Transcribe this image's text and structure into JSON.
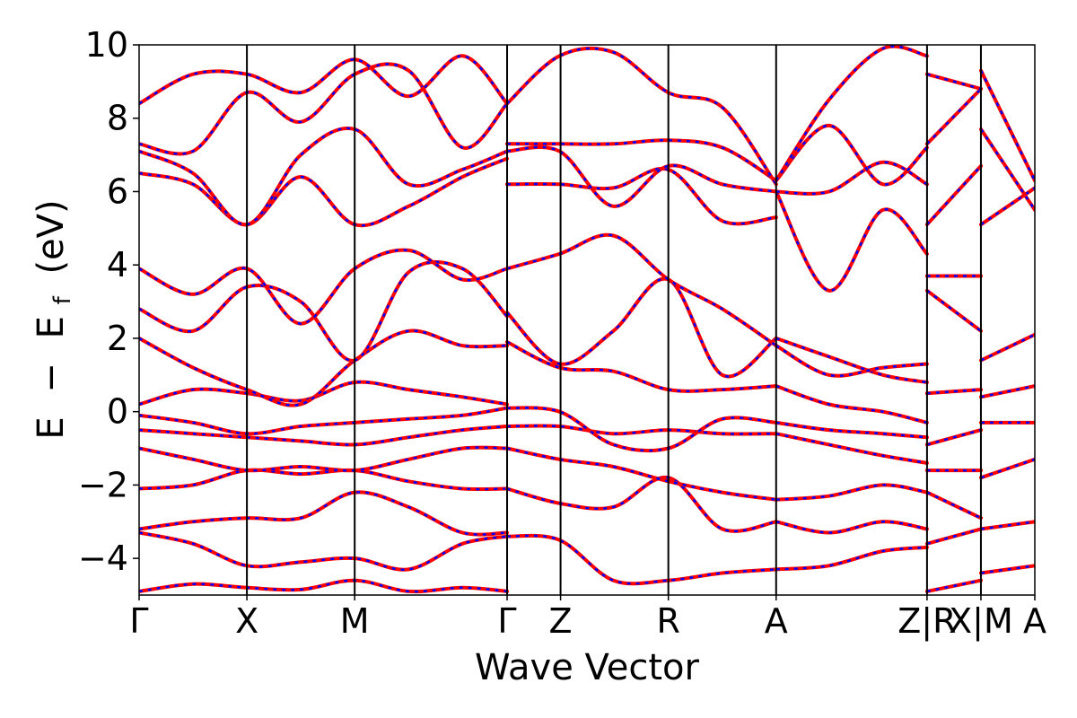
{
  "chart_data": {
    "type": "line",
    "xlabel": "Wave Vector",
    "ylabel": "E − E_f (eV)",
    "ylabel_parts": {
      "e": "E",
      "minus": "−",
      "ef_base": "E",
      "ef_sub": "f",
      "unit": "(eV)"
    },
    "ylim": [
      -5,
      10
    ],
    "yticks": [
      -4,
      -2,
      0,
      2,
      4,
      6,
      8,
      10
    ],
    "ytick_labels": [
      "−4",
      "−2",
      "0",
      "2",
      "4",
      "6",
      "8",
      "10"
    ],
    "grid": false,
    "kpoints": [
      {
        "label": "Γ",
        "x": 0.0
      },
      {
        "label": "X",
        "x": 1.0
      },
      {
        "label": "M",
        "x": 2.0
      },
      {
        "label": "Γ",
        "x": 3.414
      },
      {
        "label": "Z",
        "x": 3.91
      },
      {
        "label": "R",
        "x": 4.91
      },
      {
        "label": "A",
        "x": 5.91
      },
      {
        "label": "Z|R",
        "x": 7.31
      },
      {
        "label": "X|M",
        "x": 7.81
      },
      {
        "label": "A",
        "x": 8.31
      }
    ],
    "xlim": [
      0,
      8.31
    ],
    "series_colors": {
      "a": "#ff0000",
      "b": "#0000ff"
    },
    "series": [
      {
        "name": "",
        "style": "solid",
        "bands": [
          {
            "x": [
              0,
              0.5,
              1,
              1.5,
              2,
              2.5,
              3,
              3.414
            ],
            "y": [
              -4.9,
              -4.7,
              -4.8,
              -4.85,
              -4.6,
              -4.9,
              -4.8,
              -4.9
            ]
          },
          {
            "x": [
              0,
              0.5,
              1,
              1.5,
              2,
              2.5,
              3,
              3.414
            ],
            "y": [
              -3.3,
              -3.6,
              -4.2,
              -4.1,
              -4.0,
              -4.3,
              -3.6,
              -3.4
            ]
          },
          {
            "x": [
              0,
              0.5,
              1,
              1.5,
              2,
              2.5,
              3,
              3.414
            ],
            "y": [
              -3.2,
              -3.0,
              -2.9,
              -2.9,
              -2.2,
              -2.6,
              -3.3,
              -3.3
            ]
          },
          {
            "x": [
              0,
              0.5,
              1,
              1.5,
              2,
              2.5,
              3,
              3.414
            ],
            "y": [
              -2.1,
              -2.0,
              -1.6,
              -1.7,
              -1.6,
              -1.9,
              -2.1,
              -2.1
            ]
          },
          {
            "x": [
              0,
              0.5,
              1,
              1.5,
              2,
              2.5,
              3,
              3.414
            ],
            "y": [
              -1.0,
              -1.3,
              -1.6,
              -1.5,
              -1.6,
              -1.3,
              -1.0,
              -1.0
            ]
          },
          {
            "x": [
              0,
              0.5,
              1,
              1.5,
              2,
              2.5,
              3,
              3.414
            ],
            "y": [
              -0.5,
              -0.6,
              -0.7,
              -0.8,
              -0.9,
              -0.7,
              -0.5,
              -0.4
            ]
          },
          {
            "x": [
              0,
              0.5,
              1,
              1.5,
              2,
              2.5,
              3,
              3.414
            ],
            "y": [
              -0.1,
              -0.3,
              -0.6,
              -0.4,
              -0.3,
              -0.2,
              -0.1,
              0.1
            ]
          },
          {
            "x": [
              0,
              0.5,
              1,
              1.5,
              2,
              2.5,
              3,
              3.414
            ],
            "y": [
              0.2,
              0.6,
              0.5,
              0.3,
              0.8,
              0.6,
              0.4,
              0.2
            ]
          },
          {
            "x": [
              0,
              0.5,
              1,
              1.5,
              2,
              2.5,
              3,
              3.414
            ],
            "y": [
              2.0,
              1.2,
              0.6,
              0.2,
              1.4,
              2.2,
              1.8,
              1.8
            ]
          },
          {
            "x": [
              0,
              0.5,
              1,
              1.5,
              2,
              2.5,
              3,
              3.414
            ],
            "y": [
              2.8,
              2.2,
              3.4,
              3.0,
              1.4,
              3.8,
              3.9,
              2.6
            ]
          },
          {
            "x": [
              0,
              0.5,
              1,
              1.5,
              2,
              2.5,
              3,
              3.414
            ],
            "y": [
              3.9,
              3.2,
              3.9,
              2.4,
              3.9,
              4.4,
              3.6,
              3.9
            ]
          },
          {
            "x": [
              0,
              0.5,
              1,
              1.5,
              2,
              2.5,
              3,
              3.414
            ],
            "y": [
              6.5,
              6.2,
              5.1,
              6.4,
              5.1,
              5.6,
              6.4,
              6.9
            ]
          },
          {
            "x": [
              0,
              0.5,
              1,
              1.5,
              2,
              2.5,
              3,
              3.414
            ],
            "y": [
              7.1,
              6.5,
              5.1,
              7.0,
              7.7,
              6.2,
              6.6,
              7.1
            ]
          },
          {
            "x": [
              0,
              0.5,
              1,
              1.5,
              2,
              2.5,
              3,
              3.414
            ],
            "y": [
              7.3,
              7.1,
              8.7,
              7.9,
              9.2,
              9.3,
              7.2,
              8.4
            ]
          },
          {
            "x": [
              0,
              0.5,
              1,
              1.5,
              2,
              2.5,
              3,
              3.414
            ],
            "y": [
              8.4,
              9.2,
              9.2,
              8.7,
              9.6,
              8.6,
              9.7,
              8.4
            ]
          },
          {
            "x": [
              3.414,
              3.9,
              4.4,
              4.91,
              5.41,
              5.91
            ],
            "y": [
              -3.4,
              -3.5,
              -4.6,
              -4.6,
              -4.4,
              -4.3
            ]
          },
          {
            "x": [
              3.414,
              3.9,
              4.4,
              4.91,
              5.41,
              5.91
            ],
            "y": [
              -2.1,
              -2.5,
              -2.6,
              -1.8,
              -3.2,
              -3.0
            ]
          },
          {
            "x": [
              3.414,
              3.9,
              4.4,
              4.91,
              5.41,
              5.91
            ],
            "y": [
              -1.0,
              -1.3,
              -1.5,
              -1.9,
              -2.2,
              -2.4
            ]
          },
          {
            "x": [
              3.414,
              3.9,
              4.4,
              4.91,
              5.41,
              5.91
            ],
            "y": [
              -0.4,
              -0.4,
              -0.6,
              -0.5,
              -0.6,
              -0.6
            ]
          },
          {
            "x": [
              3.414,
              3.9,
              4.4,
              4.91,
              5.41,
              5.91
            ],
            "y": [
              0.1,
              0.0,
              -0.9,
              -1.0,
              -0.2,
              -0.3
            ]
          },
          {
            "x": [
              3.414,
              3.9,
              4.4,
              4.91,
              5.41,
              5.91
            ],
            "y": [
              1.9,
              1.2,
              1.1,
              0.6,
              0.6,
              0.7
            ]
          },
          {
            "x": [
              3.414,
              3.9,
              4.4,
              4.91,
              5.41,
              5.91
            ],
            "y": [
              2.7,
              1.3,
              2.2,
              3.6,
              1.0,
              2.0
            ]
          },
          {
            "x": [
              3.414,
              3.9,
              4.4,
              4.91,
              5.41,
              5.91
            ],
            "y": [
              3.9,
              4.3,
              4.8,
              3.6,
              2.8,
              1.8
            ]
          },
          {
            "x": [
              3.414,
              3.9,
              4.4,
              4.91,
              5.41,
              5.91
            ],
            "y": [
              6.2,
              6.2,
              6.1,
              6.6,
              5.2,
              5.3
            ]
          },
          {
            "x": [
              3.414,
              3.9,
              4.4,
              4.91,
              5.41,
              5.91
            ],
            "y": [
              7.1,
              7.1,
              5.6,
              6.7,
              6.2,
              6.0
            ]
          },
          {
            "x": [
              3.414,
              3.9,
              4.4,
              4.91,
              5.41,
              5.91
            ],
            "y": [
              7.3,
              7.3,
              7.3,
              7.4,
              7.2,
              6.3
            ]
          },
          {
            "x": [
              3.414,
              3.9,
              4.4,
              4.91,
              5.41,
              5.91
            ],
            "y": [
              8.4,
              9.7,
              9.8,
              8.7,
              8.3,
              6.2
            ]
          },
          {
            "x": [
              5.91,
              6.4,
              6.9,
              7.31
            ],
            "y": [
              -4.3,
              -4.2,
              -3.8,
              -3.7
            ]
          },
          {
            "x": [
              5.91,
              6.4,
              6.9,
              7.31
            ],
            "y": [
              -3.0,
              -3.3,
              -3.0,
              -3.2
            ]
          },
          {
            "x": [
              5.91,
              6.4,
              6.9,
              7.31
            ],
            "y": [
              -2.4,
              -2.3,
              -2.0,
              -2.2
            ]
          },
          {
            "x": [
              5.91,
              6.4,
              6.9,
              7.31
            ],
            "y": [
              -0.6,
              -0.9,
              -1.2,
              -1.4
            ]
          },
          {
            "x": [
              5.91,
              6.4,
              6.9,
              7.31
            ],
            "y": [
              -0.3,
              -0.5,
              -0.6,
              -0.7
            ]
          },
          {
            "x": [
              5.91,
              6.4,
              6.9,
              7.31
            ],
            "y": [
              0.7,
              0.2,
              0.0,
              -0.3
            ]
          },
          {
            "x": [
              5.91,
              6.4,
              6.9,
              7.31
            ],
            "y": [
              2.0,
              1.5,
              1.0,
              0.8
            ]
          },
          {
            "x": [
              5.91,
              6.4,
              6.9,
              7.31
            ],
            "y": [
              1.8,
              1.0,
              1.2,
              1.3
            ]
          },
          {
            "x": [
              5.91,
              6.4,
              6.9,
              7.31
            ],
            "y": [
              6.0,
              3.3,
              5.5,
              4.3
            ]
          },
          {
            "x": [
              5.91,
              6.4,
              6.9,
              7.31
            ],
            "y": [
              6.0,
              6.0,
              6.8,
              6.2
            ]
          },
          {
            "x": [
              5.91,
              6.4,
              6.9,
              7.31
            ],
            "y": [
              6.3,
              7.8,
              6.2,
              7.2
            ]
          },
          {
            "x": [
              5.91,
              6.4,
              6.9,
              7.31
            ],
            "y": [
              6.3,
              8.5,
              9.9,
              9.7
            ]
          },
          {
            "x": [
              7.31,
              7.81
            ],
            "y": [
              -4.9,
              -4.6
            ]
          },
          {
            "x": [
              7.31,
              7.81
            ],
            "y": [
              -3.6,
              -3.2
            ]
          },
          {
            "x": [
              7.31,
              7.81
            ],
            "y": [
              -2.2,
              -2.9
            ]
          },
          {
            "x": [
              7.31,
              7.81
            ],
            "y": [
              -1.6,
              -1.6
            ]
          },
          {
            "x": [
              7.31,
              7.81
            ],
            "y": [
              -0.9,
              -0.5
            ]
          },
          {
            "x": [
              7.31,
              7.81
            ],
            "y": [
              0.5,
              0.6
            ]
          },
          {
            "x": [
              7.31,
              7.81
            ],
            "y": [
              3.7,
              3.7
            ]
          },
          {
            "x": [
              7.31,
              7.81
            ],
            "y": [
              3.3,
              2.2
            ]
          },
          {
            "x": [
              7.31,
              7.81
            ],
            "y": [
              5.1,
              6.7
            ]
          },
          {
            "x": [
              7.31,
              7.81
            ],
            "y": [
              7.3,
              8.8
            ]
          },
          {
            "x": [
              7.31,
              7.81
            ],
            "y": [
              9.2,
              8.8
            ]
          },
          {
            "x": [
              7.81,
              8.31
            ],
            "y": [
              -4.4,
              -4.2
            ]
          },
          {
            "x": [
              7.81,
              8.31
            ],
            "y": [
              -3.2,
              -3.0
            ]
          },
          {
            "x": [
              7.81,
              8.31
            ],
            "y": [
              -1.8,
              -1.3
            ]
          },
          {
            "x": [
              7.81,
              8.31
            ],
            "y": [
              -0.3,
              -0.3
            ]
          },
          {
            "x": [
              7.81,
              8.31
            ],
            "y": [
              0.4,
              0.7
            ]
          },
          {
            "x": [
              7.81,
              8.31
            ],
            "y": [
              1.4,
              2.1
            ]
          },
          {
            "x": [
              7.81,
              8.31
            ],
            "y": [
              5.1,
              6.1
            ]
          },
          {
            "x": [
              7.81,
              8.31
            ],
            "y": [
              7.7,
              5.5
            ]
          },
          {
            "x": [
              7.81,
              8.31
            ],
            "y": [
              9.3,
              6.3
            ]
          }
        ]
      }
    ]
  }
}
